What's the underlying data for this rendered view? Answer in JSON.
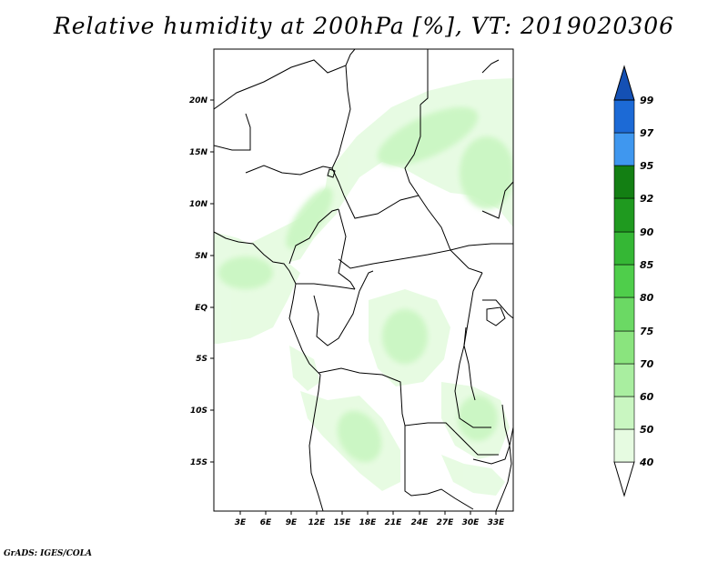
{
  "title": "Relative humidity at 200hPa [%], VT: 2019020306",
  "footer": "GrADS: IGES/COLA",
  "map": {
    "variable": "Relative humidity",
    "level": "200hPa",
    "units": "%",
    "valid_time": "2019020306",
    "lon_range": [
      0,
      36
    ],
    "lat_range": [
      -20,
      25
    ],
    "lon_ticks": [
      "3E",
      "6E",
      "9E",
      "12E",
      "15E",
      "18E",
      "21E",
      "24E",
      "27E",
      "30E",
      "33E"
    ],
    "lon_tick_values": [
      3,
      6,
      9,
      12,
      15,
      18,
      21,
      24,
      27,
      30,
      33
    ],
    "lat_ticks": [
      "20N",
      "15N",
      "10N",
      "5N",
      "EQ",
      "5S",
      "10S",
      "15S"
    ],
    "lat_tick_values": [
      20,
      15,
      10,
      5,
      0,
      -5,
      -10,
      -15
    ]
  },
  "colorbar": {
    "labels": [
      "40",
      "50",
      "60",
      "70",
      "75",
      "80",
      "85",
      "90",
      "92",
      "95",
      "97",
      "99"
    ],
    "colors": [
      "#ffffff",
      "#e6fbe1",
      "#c9f6c1",
      "#a9eea0",
      "#8ae47e",
      "#6bd964",
      "#4fce4b",
      "#35b735",
      "#1f9a1f",
      "#137f13",
      "#3f97ef",
      "#1c6ad6",
      "#1450b4"
    ]
  }
}
